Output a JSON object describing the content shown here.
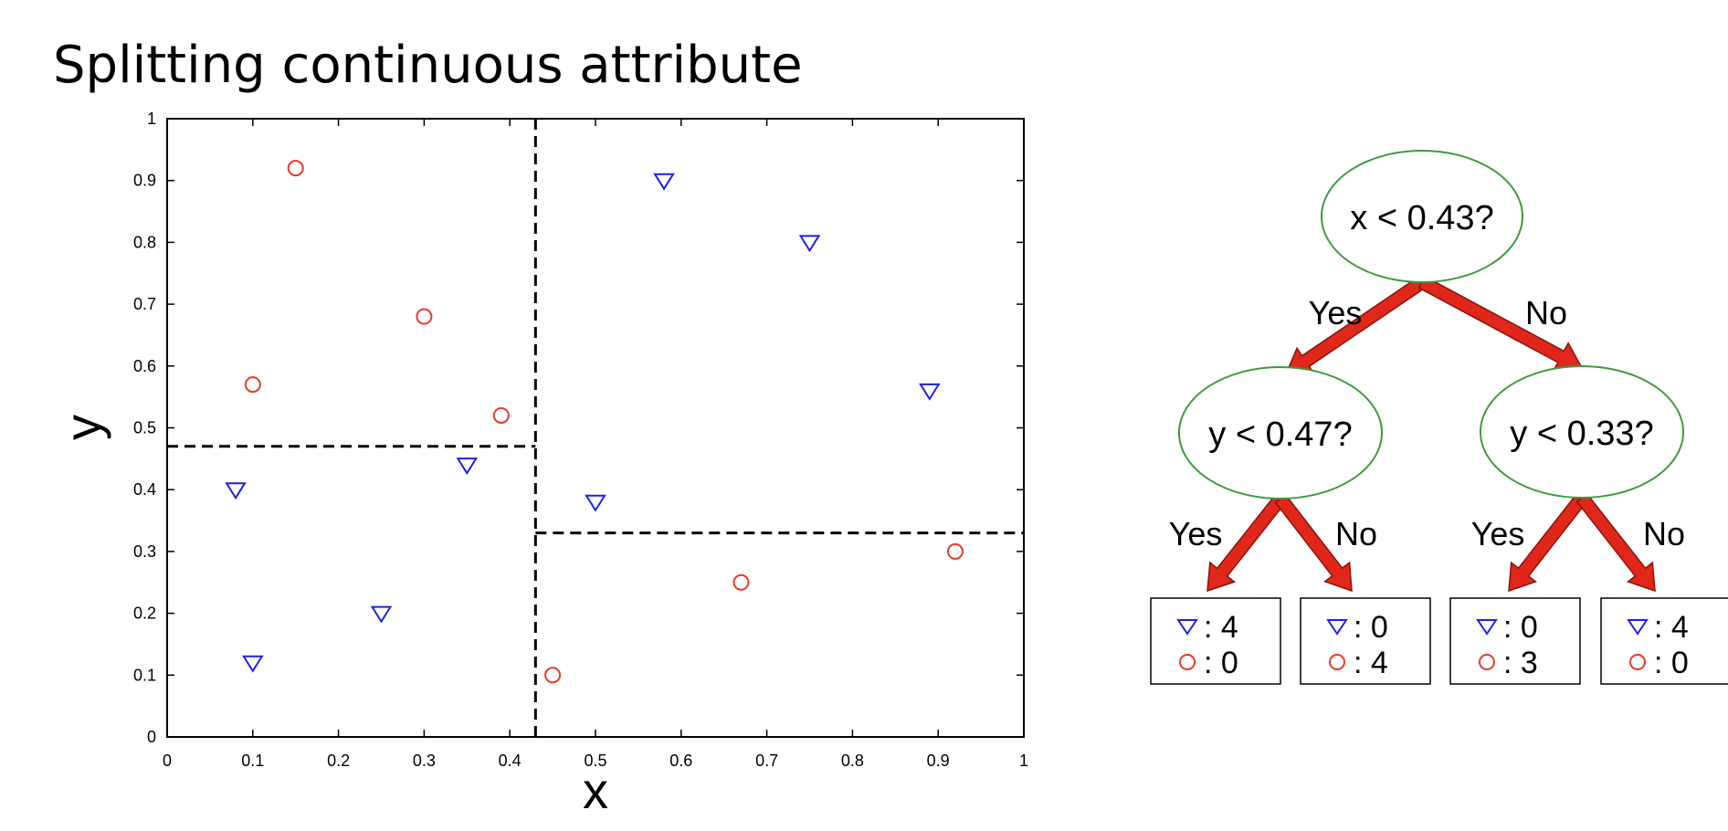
{
  "title": "Splitting continuous attribute",
  "colors": {
    "class_triangle": "#1f1fe6",
    "class_circle": "#e6392b",
    "node_stroke": "#3f9a3f",
    "arrow_fill": "#e0271a",
    "arrow_stroke": "#8a1209",
    "split_line": "#000000"
  },
  "chart_data": {
    "type": "scatter",
    "xlabel": "x",
    "ylabel": "y",
    "xlim": [
      0,
      1
    ],
    "ylim": [
      0,
      1
    ],
    "x_ticks": [
      "0",
      "0.1",
      "0.2",
      "0.3",
      "0.4",
      "0.5",
      "0.6",
      "0.7",
      "0.8",
      "0.9",
      "1"
    ],
    "y_ticks": [
      "0",
      "0.1",
      "0.2",
      "0.3",
      "0.4",
      "0.5",
      "0.6",
      "0.7",
      "0.8",
      "0.9",
      "1"
    ],
    "grid": false,
    "series": [
      {
        "marker": "triangle-down",
        "color": "#1f1fe6",
        "points": [
          [
            0.08,
            0.4
          ],
          [
            0.1,
            0.12
          ],
          [
            0.25,
            0.2
          ],
          [
            0.35,
            0.44
          ],
          [
            0.5,
            0.38
          ],
          [
            0.58,
            0.9
          ],
          [
            0.75,
            0.8
          ],
          [
            0.89,
            0.56
          ]
        ]
      },
      {
        "marker": "circle",
        "color": "#e6392b",
        "points": [
          [
            0.1,
            0.57
          ],
          [
            0.15,
            0.92
          ],
          [
            0.3,
            0.68
          ],
          [
            0.39,
            0.52
          ],
          [
            0.45,
            0.1
          ],
          [
            0.67,
            0.25
          ],
          [
            0.92,
            0.3
          ]
        ]
      }
    ],
    "splits": [
      {
        "orientation": "vertical",
        "value": 0.43,
        "from": 0,
        "to": 1
      },
      {
        "orientation": "horizontal",
        "value": 0.47,
        "from": 0,
        "to": 0.43
      },
      {
        "orientation": "horizontal",
        "value": 0.33,
        "from": 0.43,
        "to": 1
      }
    ]
  },
  "tree": {
    "root": {
      "label": "x < 0.43?"
    },
    "left": {
      "label": "y < 0.47?"
    },
    "right": {
      "label": "y < 0.33?"
    },
    "edge_yes": "Yes",
    "edge_no": "No",
    "leaves": [
      {
        "triangle": ": 4",
        "circle": ": 0"
      },
      {
        "triangle": ": 0",
        "circle": ": 4"
      },
      {
        "triangle": ": 0",
        "circle": ": 3"
      },
      {
        "triangle": ": 4",
        "circle": ": 0"
      }
    ]
  }
}
